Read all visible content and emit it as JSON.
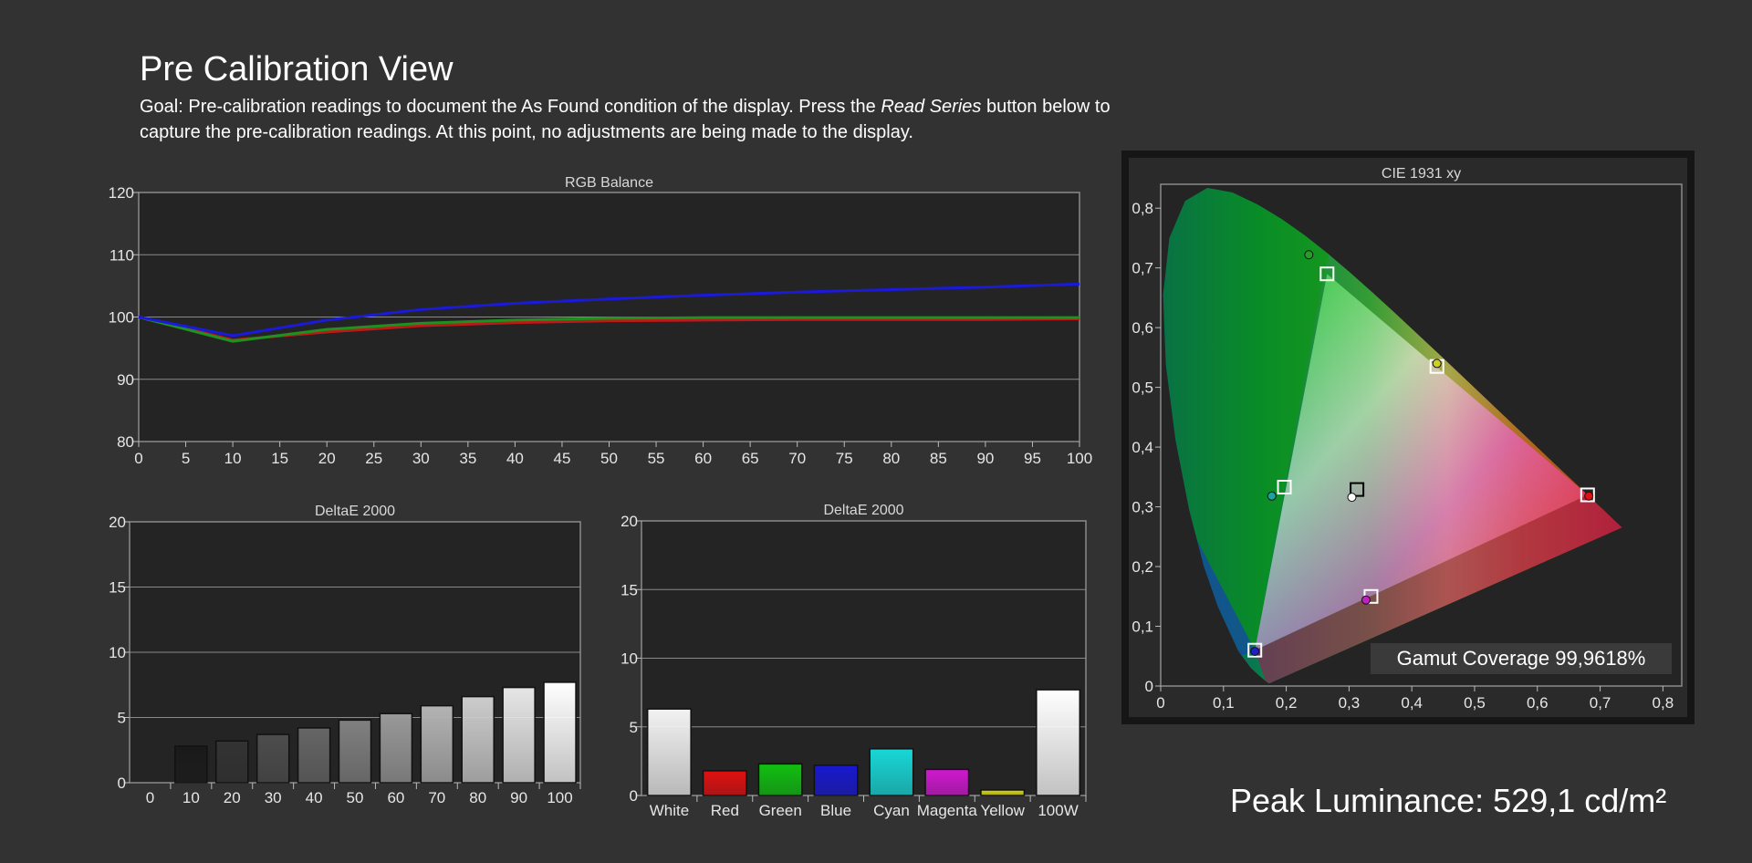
{
  "header": {
    "title": "Pre Calibration View",
    "desc_part1": "Goal: Pre-calibration readings to document the As Found condition of the display. Press the ",
    "desc_em": "Read Series",
    "desc_part2": " button below to capture the pre-calibration readings. At this point, no adjustments are being made to the display."
  },
  "peak_luminance": "Peak Luminance: 529,1 cd/m²",
  "gamut_coverage": "Gamut Coverage 99,9618%",
  "chart_data": [
    {
      "id": "rgb",
      "type": "line",
      "title": "RGB Balance",
      "x": [
        0,
        10,
        20,
        30,
        40,
        50,
        60,
        70,
        80,
        90,
        100
      ],
      "xlim": [
        0,
        100
      ],
      "ylim": [
        80,
        120
      ],
      "xticks": [
        0,
        5,
        10,
        15,
        20,
        25,
        30,
        35,
        40,
        45,
        50,
        55,
        60,
        65,
        70,
        75,
        80,
        85,
        90,
        95,
        100
      ],
      "yticks": [
        80,
        90,
        100,
        110,
        120
      ],
      "grid": "horizontal",
      "series": [
        {
          "color": "#c01818",
          "values": [
            100,
            96.3,
            97.6,
            98.6,
            99.1,
            99.4,
            99.5,
            99.6,
            99.6,
            99.6,
            99.7
          ]
        },
        {
          "color": "#209020",
          "values": [
            100,
            96.1,
            98.0,
            99.0,
            99.5,
            99.8,
            99.9,
            99.9,
            99.9,
            99.9,
            99.9
          ]
        },
        {
          "color": "#1a1ad8",
          "values": [
            100,
            97.0,
            99.5,
            101.2,
            102.2,
            102.9,
            103.5,
            104.0,
            104.4,
            104.8,
            105.3
          ]
        }
      ]
    },
    {
      "id": "grayscale",
      "type": "bar",
      "title": "DeltaE 2000",
      "categories": [
        "0",
        "10",
        "20",
        "30",
        "40",
        "50",
        "60",
        "70",
        "80",
        "90",
        "100"
      ],
      "values": [
        0,
        2.8,
        3.2,
        3.7,
        4.2,
        4.8,
        5.3,
        5.9,
        6.6,
        7.3,
        7.7
      ],
      "colors": [
        "#000000",
        "#1a1a1a",
        "#333333",
        "#4d4d4d",
        "#666666",
        "#808080",
        "#999999",
        "#b3b3b3",
        "#cccccc",
        "#e6e6e6",
        "#ffffff"
      ],
      "ylim": [
        0,
        20
      ],
      "yticks": [
        0,
        5,
        10,
        15,
        20
      ],
      "grid": "horizontal"
    },
    {
      "id": "colors",
      "type": "bar",
      "title": "DeltaE 2000",
      "categories": [
        "White",
        "Red",
        "Green",
        "Blue",
        "Cyan",
        "Magenta",
        "Yellow",
        "100W"
      ],
      "values": [
        6.3,
        1.8,
        2.3,
        2.2,
        3.4,
        1.9,
        0.4,
        7.7
      ],
      "colors": [
        "#f2f2f2",
        "#e01010",
        "#10c010",
        "#1818d0",
        "#18d8d8",
        "#d018d0",
        "#d8d818",
        "#ffffff"
      ],
      "ylim": [
        0,
        20
      ],
      "yticks": [
        0,
        5,
        10,
        15,
        20
      ],
      "grid": "horizontal"
    },
    {
      "id": "cie",
      "type": "scatter",
      "title": "CIE 1931 xy",
      "xlim": [
        0,
        0.83
      ],
      "ylim": [
        0,
        0.84
      ],
      "xticks": [
        "0",
        "0,1",
        "0,2",
        "0,3",
        "0,4",
        "0,5",
        "0,6",
        "0,7",
        "0,8"
      ],
      "yticks": [
        "0",
        "0,1",
        "0,2",
        "0,3",
        "0,4",
        "0,5",
        "0,6",
        "0,7",
        "0,8"
      ],
      "gamut_triangle": [
        [
          0.265,
          0.69
        ],
        [
          0.68,
          0.32
        ],
        [
          0.15,
          0.06
        ]
      ],
      "targets": [
        {
          "name": "Green",
          "x": 0.265,
          "y": 0.69
        },
        {
          "name": "Yellow",
          "x": 0.44,
          "y": 0.535
        },
        {
          "name": "Red",
          "x": 0.68,
          "y": 0.32
        },
        {
          "name": "Cyan",
          "x": 0.197,
          "y": 0.333
        },
        {
          "name": "White",
          "x": 0.3127,
          "y": 0.329
        },
        {
          "name": "Magenta",
          "x": 0.335,
          "y": 0.15
        },
        {
          "name": "Blue",
          "x": 0.15,
          "y": 0.06
        }
      ],
      "measured": [
        {
          "name": "Green",
          "x": 0.236,
          "y": 0.722,
          "color": "#2a9a2a"
        },
        {
          "name": "Yellow",
          "x": 0.44,
          "y": 0.54,
          "color": "#d0d020"
        },
        {
          "name": "Red",
          "x": 0.682,
          "y": 0.318,
          "color": "#e01010"
        },
        {
          "name": "Cyan",
          "x": 0.177,
          "y": 0.318,
          "color": "#20a0a0"
        },
        {
          "name": "White",
          "x": 0.3045,
          "y": 0.316,
          "color": "#ffffff"
        },
        {
          "name": "Magenta",
          "x": 0.327,
          "y": 0.144,
          "color": "#c020c0"
        },
        {
          "name": "Blue",
          "x": 0.15,
          "y": 0.058,
          "color": "#2020c0"
        }
      ]
    }
  ]
}
